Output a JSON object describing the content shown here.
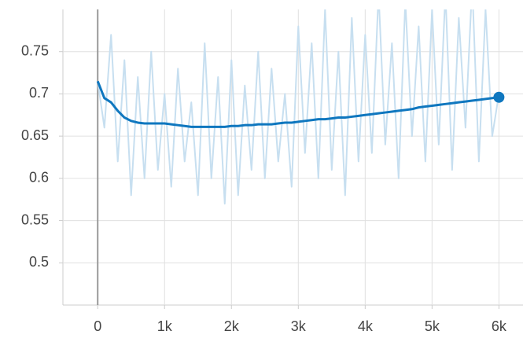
{
  "chart_data": {
    "type": "line",
    "x": [
      0,
      100,
      200,
      300,
      400,
      500,
      600,
      700,
      800,
      900,
      1000,
      1100,
      1200,
      1300,
      1400,
      1500,
      1600,
      1700,
      1800,
      1900,
      2000,
      2100,
      2200,
      2300,
      2400,
      2500,
      2600,
      2700,
      2800,
      2900,
      3000,
      3100,
      3200,
      3300,
      3400,
      3500,
      3600,
      3700,
      3800,
      3900,
      4000,
      4100,
      4200,
      4300,
      4400,
      4500,
      4600,
      4700,
      4800,
      4900,
      5000,
      5100,
      5200,
      5300,
      5400,
      5500,
      5600,
      5700,
      5800,
      5900,
      6000
    ],
    "series": [
      {
        "color": "#c7dff0",
        "values": [
          0.715,
          0.66,
          0.77,
          0.62,
          0.74,
          0.58,
          0.72,
          0.6,
          0.75,
          0.61,
          0.7,
          0.59,
          0.73,
          0.62,
          0.69,
          0.58,
          0.76,
          0.6,
          0.72,
          0.57,
          0.74,
          0.58,
          0.71,
          0.61,
          0.75,
          0.6,
          0.73,
          0.62,
          0.7,
          0.59,
          0.78,
          0.63,
          0.76,
          0.6,
          0.8,
          0.61,
          0.75,
          0.58,
          0.79,
          0.62,
          0.77,
          0.63,
          0.82,
          0.64,
          0.76,
          0.6,
          0.81,
          0.65,
          0.78,
          0.62,
          0.8,
          0.64,
          0.82,
          0.61,
          0.79,
          0.66,
          0.83,
          0.62,
          0.8,
          0.65,
          0.7
        ]
      },
      {
        "color": "#0f77bf",
        "values": [
          0.715,
          0.695,
          0.69,
          0.68,
          0.672,
          0.668,
          0.666,
          0.665,
          0.665,
          0.665,
          0.665,
          0.664,
          0.663,
          0.662,
          0.661,
          0.661,
          0.661,
          0.661,
          0.661,
          0.661,
          0.662,
          0.662,
          0.663,
          0.663,
          0.664,
          0.664,
          0.664,
          0.665,
          0.666,
          0.666,
          0.667,
          0.668,
          0.669,
          0.67,
          0.67,
          0.671,
          0.672,
          0.672,
          0.673,
          0.674,
          0.675,
          0.676,
          0.677,
          0.678,
          0.679,
          0.68,
          0.681,
          0.682,
          0.684,
          0.685,
          0.686,
          0.687,
          0.688,
          0.689,
          0.69,
          0.691,
          0.692,
          0.693,
          0.694,
          0.695,
          0.696
        ]
      }
    ],
    "xlim": [
      -520,
      6360
    ],
    "ylim": [
      0.45,
      0.8
    ],
    "xticks": [
      0,
      {
        "value": 1000,
        "label": "1k"
      },
      {
        "value": 2000,
        "label": "2k"
      },
      {
        "value": 3000,
        "label": "3k"
      },
      {
        "value": 4000,
        "label": "4k"
      },
      {
        "value": 5000,
        "label": "5k"
      },
      {
        "value": 6000,
        "label": "6k"
      }
    ],
    "yticks": [
      0.5,
      0.55,
      0.6,
      0.65,
      0.7,
      0.75
    ],
    "grid": true
  }
}
